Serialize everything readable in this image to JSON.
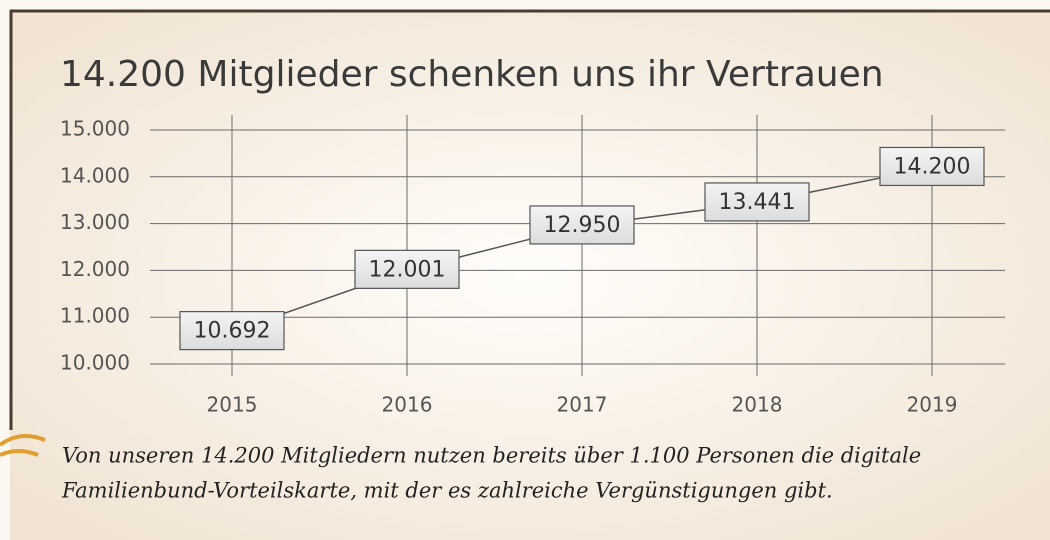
{
  "chart_data": {
    "type": "line",
    "title": "14.200 Mitglieder schenken uns ihr Vertrauen",
    "categories": [
      "2015",
      "2016",
      "2017",
      "2018",
      "2019"
    ],
    "values": [
      10692,
      12001,
      12950,
      13441,
      14200
    ],
    "value_labels": [
      "10.692",
      "12.001",
      "12.950",
      "13.441",
      "14.200"
    ],
    "color": "#555555",
    "ylim": [
      10000,
      15000
    ],
    "yticks": [
      {
        "value": 10000,
        "label": "10.000"
      },
      {
        "value": 11000,
        "label": "11.000"
      },
      {
        "value": 12000,
        "label": "12.000"
      },
      {
        "value": 13000,
        "label": "13.000"
      },
      {
        "value": 14000,
        "label": "14.000"
      },
      {
        "value": 15000,
        "label": "15.000"
      }
    ],
    "grid": true,
    "caption": [
      "Von unseren 14.200 Mitgliedern nutzen bereits über 1.100 Personen die digitale",
      "Familienbund-Vorteilskarte, mit der es zahlreiche Vergünstigungen gibt."
    ]
  }
}
